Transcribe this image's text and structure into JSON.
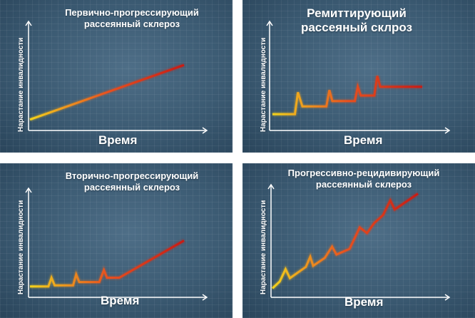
{
  "chart_data": [
    {
      "type": "line",
      "title": "Первично-прогрессирующий\nрассеянный склероз",
      "xlabel": "Время",
      "ylabel": "Нарастание инвалидности",
      "grid": true,
      "series": [
        {
          "x": [
            0,
            1
          ],
          "values": [
            0.1,
            0.6
          ]
        }
      ],
      "colors": [
        "#f2d21c",
        "#e8511f",
        "#c81b14"
      ]
    },
    {
      "type": "line",
      "title": "Ремиттирующий\nрассеяный склроз",
      "xlabel": "Время",
      "ylabel": "Нарастание инвалидности",
      "grid": true,
      "series": [
        {
          "x": [
            0,
            0.15,
            0.17,
            0.2,
            0.36,
            0.38,
            0.4,
            0.55,
            0.57,
            0.59,
            0.68,
            0.7,
            0.72,
            0.8,
            0.82,
            0.84,
            1
          ],
          "values": [
            0.15,
            0.15,
            0.35,
            0.22,
            0.22,
            0.37,
            0.27,
            0.27,
            0.4,
            0.32,
            0.32,
            0.5,
            0.4,
            0.4,
            0.4,
            0.4,
            0.4
          ]
        }
      ],
      "colors": [
        "#f2d21c",
        "#e8511f",
        "#c81b14"
      ]
    },
    {
      "type": "line",
      "title": "Вторично-прогрессирующий\nрассеянный склероз",
      "xlabel": "Время",
      "ylabel": "Нарастание инвалидности",
      "grid": true,
      "series": [
        {
          "x": [
            0,
            0.12,
            0.14,
            0.16,
            0.28,
            0.3,
            0.32,
            0.45,
            0.48,
            0.5,
            0.58,
            1
          ],
          "values": [
            0.1,
            0.1,
            0.18,
            0.11,
            0.11,
            0.21,
            0.14,
            0.14,
            0.25,
            0.18,
            0.18,
            0.52
          ]
        }
      ],
      "colors": [
        "#f2d21c",
        "#e8511f",
        "#c81b14"
      ]
    },
    {
      "type": "line",
      "title": "Прогрессивно-рецидивирующий\nрассеянный склероз",
      "xlabel": "Время",
      "ylabel": "Нарастание инвалидности",
      "grid": true,
      "series": [
        {
          "x": [
            0,
            0.05,
            0.09,
            0.12,
            0.23,
            0.26,
            0.28,
            0.36,
            0.41,
            0.44,
            0.53,
            0.6,
            0.65,
            0.7,
            0.76,
            0.81,
            0.84,
            1
          ],
          "values": [
            0.08,
            0.14,
            0.25,
            0.17,
            0.27,
            0.36,
            0.28,
            0.35,
            0.45,
            0.38,
            0.43,
            0.62,
            0.57,
            0.66,
            0.73,
            0.86,
            0.78,
            0.92
          ]
        }
      ],
      "colors": [
        "#f2d21c",
        "#e8511f",
        "#c81b14"
      ]
    }
  ]
}
